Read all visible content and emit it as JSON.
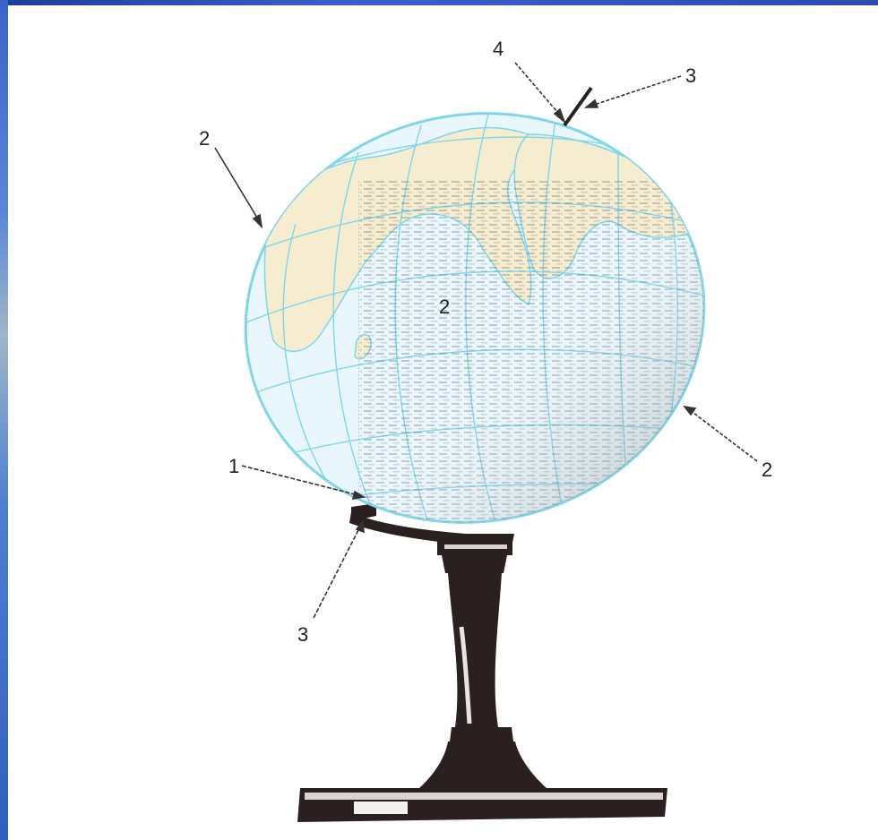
{
  "callouts": {
    "axis_point": "1",
    "globe_edge_left": "2",
    "globe_edge_right": "2",
    "globe_center": "2",
    "axis_top": "3",
    "stand_arc": "3",
    "north_pole": "4"
  },
  "colors": {
    "ocean": "#e9f7fc",
    "land": "#f6ecd0",
    "gridline": "#7fd6e8",
    "stand": "#2a2020",
    "frame": "#2c49b3"
  }
}
